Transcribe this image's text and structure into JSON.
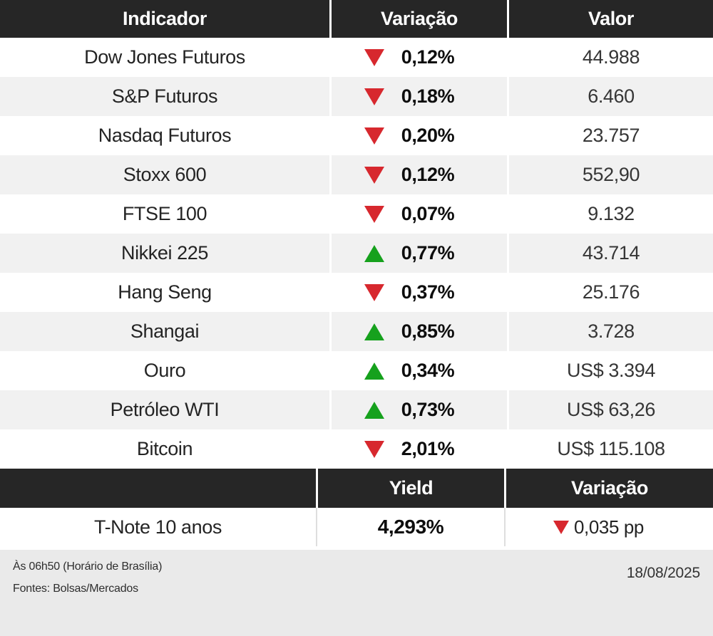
{
  "colors": {
    "up": "#16a11d",
    "down": "#d7282e",
    "header_bg": "#262626",
    "row_alt": "#f1f1f1",
    "footer_bg": "#eaeaea"
  },
  "table": {
    "headers": [
      "Indicador",
      "Variação",
      "Valor"
    ],
    "rows": [
      {
        "indicator": "Dow Jones Futuros",
        "direction": "down",
        "variation": "0,12%",
        "value": "44.988"
      },
      {
        "indicator": "S&P Futuros",
        "direction": "down",
        "variation": "0,18%",
        "value": "6.460"
      },
      {
        "indicator": "Nasdaq Futuros",
        "direction": "down",
        "variation": "0,20%",
        "value": "23.757"
      },
      {
        "indicator": "Stoxx 600",
        "direction": "down",
        "variation": "0,12%",
        "value": "552,90"
      },
      {
        "indicator": "FTSE 100",
        "direction": "down",
        "variation": "0,07%",
        "value": "9.132"
      },
      {
        "indicator": "Nikkei 225",
        "direction": "up",
        "variation": "0,77%",
        "value": "43.714"
      },
      {
        "indicator": "Hang Seng",
        "direction": "down",
        "variation": "0,37%",
        "value": "25.176"
      },
      {
        "indicator": "Shangai",
        "direction": "up",
        "variation": "0,85%",
        "value": "3.728"
      },
      {
        "indicator": "Ouro",
        "direction": "up",
        "variation": "0,34%",
        "value": "US$ 3.394"
      },
      {
        "indicator": "Petróleo WTI",
        "direction": "up",
        "variation": "0,73%",
        "value": "US$ 63,26"
      },
      {
        "indicator": "Bitcoin",
        "direction": "down",
        "variation": "2,01%",
        "value": "US$ 115.108"
      }
    ]
  },
  "bond": {
    "headers": {
      "yield": "Yield",
      "variation": "Variação"
    },
    "row": {
      "indicator": "T-Note 10 anos",
      "yield": "4,293%",
      "direction": "down",
      "variation": "0,035 pp"
    }
  },
  "footer": {
    "time_note": "Às 06h50 (Horário de Brasília)",
    "sources": "Fontes: Bolsas/Mercados",
    "date": "18/08/2025"
  },
  "chart_data": {
    "type": "table",
    "title": "Indicadores de mercado",
    "columns": [
      "Indicador",
      "Variação",
      "Valor"
    ],
    "rows": [
      [
        "Dow Jones Futuros",
        "-0,12%",
        "44.988"
      ],
      [
        "S&P Futuros",
        "-0,18%",
        "6.460"
      ],
      [
        "Nasdaq Futuros",
        "-0,20%",
        "23.757"
      ],
      [
        "Stoxx 600",
        "-0,12%",
        "552,90"
      ],
      [
        "FTSE 100",
        "-0,07%",
        "9.132"
      ],
      [
        "Nikkei 225",
        "+0,77%",
        "43.714"
      ],
      [
        "Hang Seng",
        "-0,37%",
        "25.176"
      ],
      [
        "Shangai",
        "+0,85%",
        "3.728"
      ],
      [
        "Ouro",
        "+0,34%",
        "US$ 3.394"
      ],
      [
        "Petróleo WTI",
        "+0,73%",
        "US$ 63,26"
      ],
      [
        "Bitcoin",
        "-2,01%",
        "US$ 115.108"
      ]
    ],
    "secondary_table": {
      "columns": [
        "",
        "Yield",
        "Variação"
      ],
      "rows": [
        [
          "T-Note 10 anos",
          "4,293%",
          "-0,035 pp"
        ]
      ]
    },
    "annotations": [
      "Às 06h50 (Horário de Brasília)",
      "Fontes: Bolsas/Mercados",
      "18/08/2025"
    ]
  }
}
